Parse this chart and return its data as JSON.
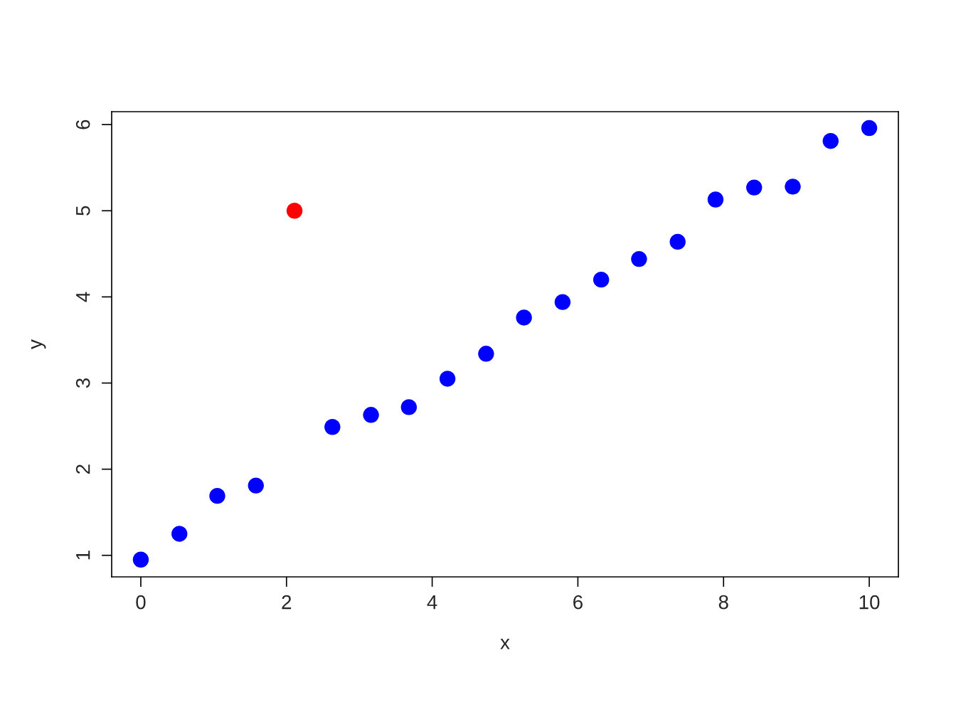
{
  "chart_data": {
    "type": "scatter",
    "xlabel": "x",
    "ylabel": "y",
    "marker": "circle",
    "grid": false,
    "legend": false,
    "xlim": [
      -0.4,
      10.4
    ],
    "ylim": [
      0.75,
      6.15
    ],
    "xticks": [
      0,
      2,
      4,
      6,
      8,
      10
    ],
    "yticks": [
      1,
      2,
      3,
      4,
      5,
      6
    ],
    "series": [
      {
        "color": "#0000ff",
        "x": [
          0,
          0.53,
          1.05,
          1.58,
          2.63,
          3.16,
          3.68,
          4.21,
          4.74,
          5.26,
          5.79,
          6.32,
          6.84,
          7.37,
          7.89,
          8.42,
          8.95,
          9.47,
          10
        ],
        "values": [
          0.95,
          1.25,
          1.69,
          1.81,
          2.49,
          2.63,
          2.72,
          3.05,
          3.34,
          3.76,
          3.94,
          4.2,
          4.44,
          4.64,
          5.13,
          5.27,
          5.28,
          5.81,
          5.96
        ]
      },
      {
        "color": "#ff0000",
        "x": [
          2.11
        ],
        "values": [
          5.0
        ]
      }
    ]
  }
}
